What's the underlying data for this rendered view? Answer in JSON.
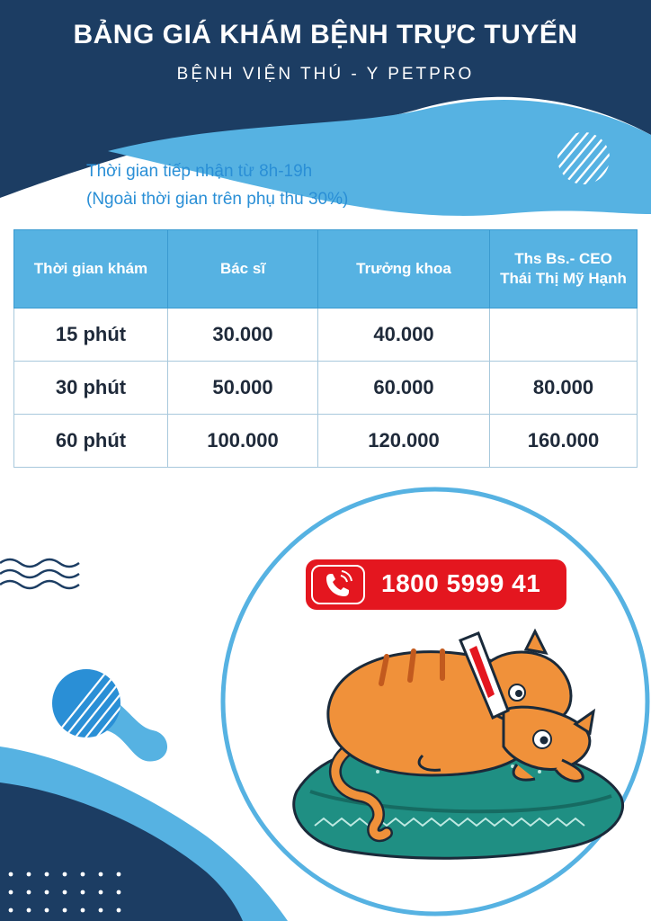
{
  "header": {
    "title": "BẢNG GIÁ KHÁM BỆNH TRỰC TUYẾN",
    "subtitle": "BỆNH VIỆN THÚ - Y PETPRO"
  },
  "notes": {
    "hours": "Thời gian tiếp nhận từ 8h-19h",
    "surcharge": "(Ngoài thời gian trên phụ thu 30%)"
  },
  "price_table": {
    "headers": [
      "Thời gian khám",
      "Bác sĩ",
      "Trưởng khoa",
      "Ths Bs.- CEO",
      "Thái Thị Mỹ Hạnh"
    ],
    "rows": [
      {
        "duration": "15 phút",
        "doctor": "30.000",
        "head": "40.000",
        "ceo": ""
      },
      {
        "duration": "30 phút",
        "doctor": "50.000",
        "head": "60.000",
        "ceo": "80.000"
      },
      {
        "duration": "60 phút",
        "doctor": "100.000",
        "head": "120.000",
        "ceo": "160.000"
      }
    ]
  },
  "contact": {
    "phone": "1800 5999 41",
    "icon": "phone-icon"
  },
  "colors": {
    "navy": "#1c3d63",
    "sky": "#56b2e2",
    "red": "#e4161f",
    "cat_orange": "#f0913a",
    "cushion_teal": "#1f8f83"
  }
}
